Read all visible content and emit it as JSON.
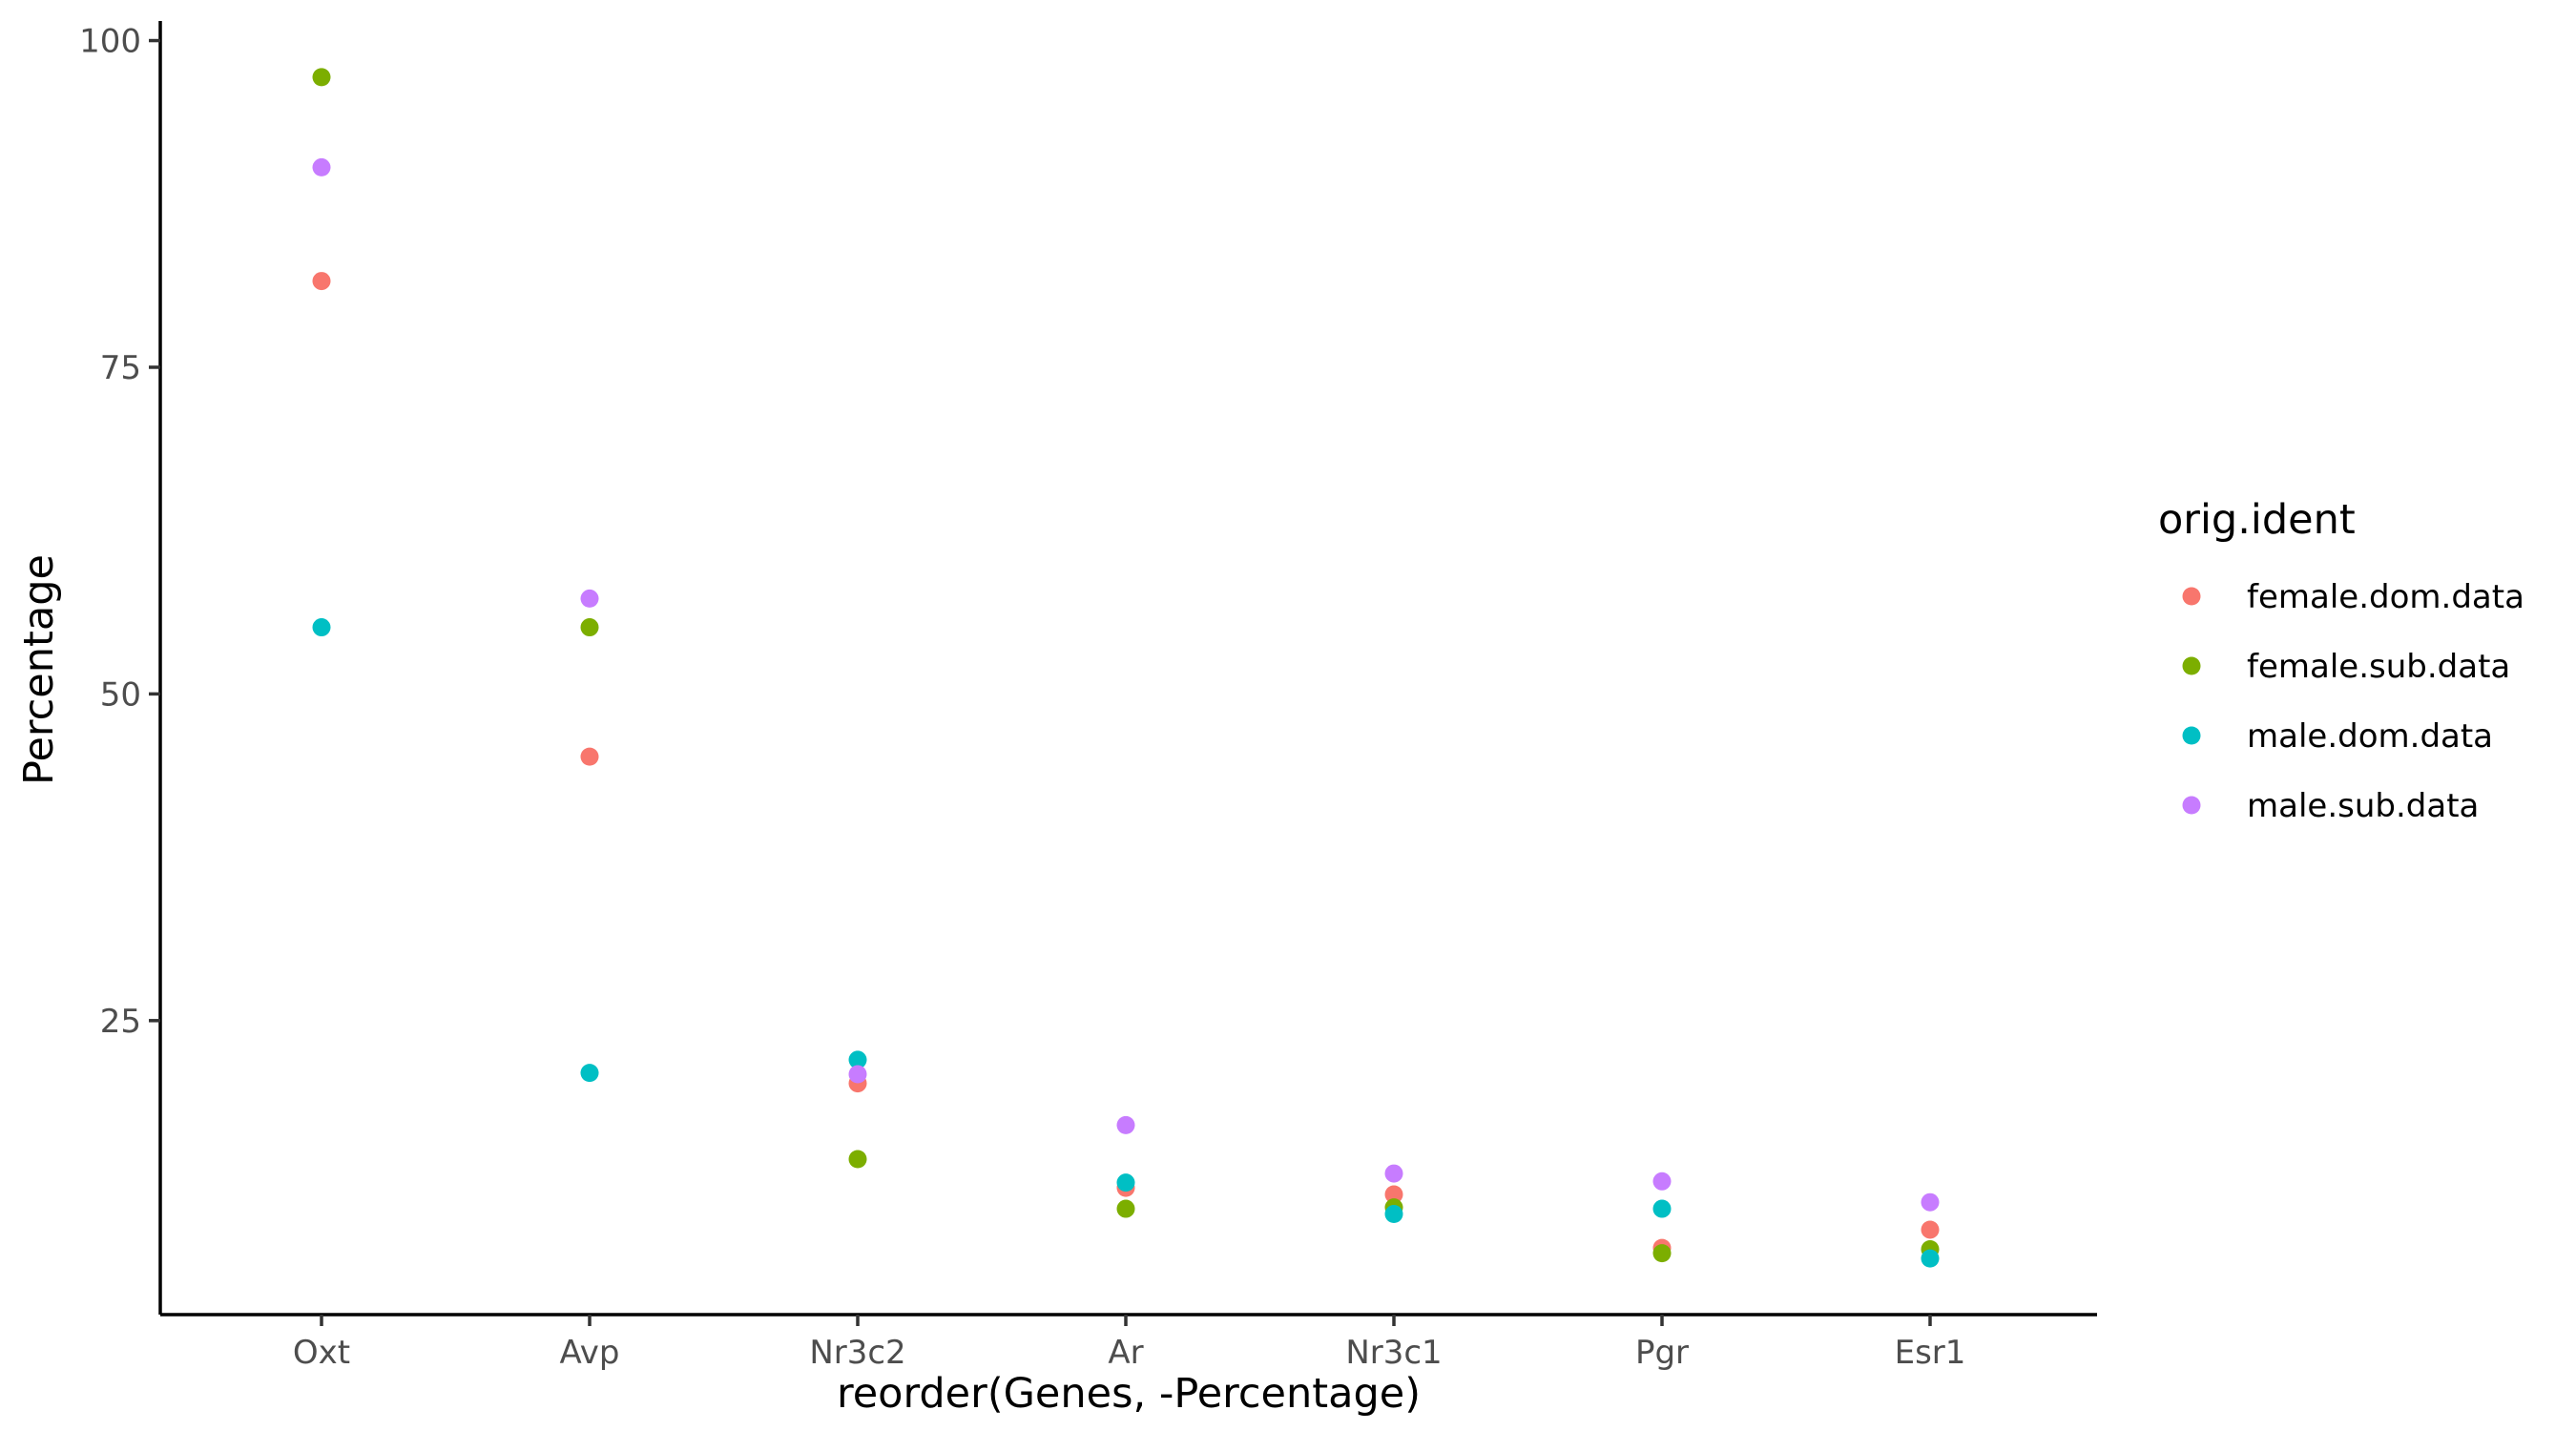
{
  "chart_data": {
    "type": "scatter",
    "title": "",
    "xlabel": "reorder(Genes, -Percentage)",
    "ylabel": "Percentage",
    "categories": [
      "Oxt",
      "Avp",
      "Nr3c2",
      "Ar",
      "Nr3c1",
      "Pgr",
      "Esr1"
    ],
    "ylim": [
      2.5,
      101.5
    ],
    "yticks": [
      25,
      50,
      75,
      100
    ],
    "grid": false,
    "legend": {
      "title": "orig.ident",
      "position": "right"
    },
    "series": [
      {
        "name": "female.dom.data",
        "color": "#F8766D",
        "values": [
          81.6,
          45.2,
          20.2,
          12.2,
          11.7,
          7.6,
          9.0
        ]
      },
      {
        "name": "female.sub.data",
        "color": "#7CAE00",
        "values": [
          97.2,
          55.1,
          14.4,
          10.6,
          10.7,
          7.2,
          7.5
        ]
      },
      {
        "name": "male.dom.data",
        "color": "#00BFC4",
        "values": [
          55.1,
          21.0,
          22.0,
          12.6,
          10.2,
          10.6,
          6.8
        ]
      },
      {
        "name": "male.sub.data",
        "color": "#C77CFF",
        "values": [
          90.3,
          57.3,
          20.9,
          17.0,
          13.3,
          12.7,
          11.1
        ]
      }
    ]
  }
}
